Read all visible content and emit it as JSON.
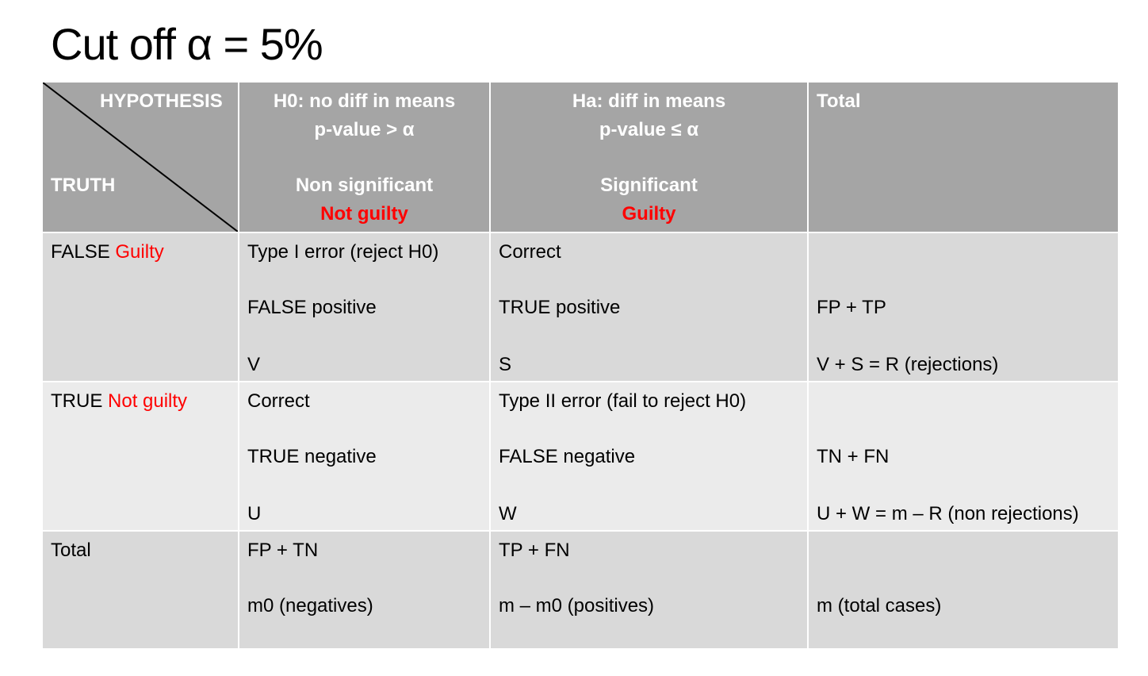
{
  "title": "Cut off α  = 5%",
  "header": {
    "corner_top": "HYPOTHESIS",
    "corner_bottom": "TRUTH",
    "h0_line1": "H0: no diff in means",
    "h0_line2": "p-value > α",
    "h0_line3": "Non significant",
    "h0_line4": "Not guilty",
    "ha_line1": "Ha: diff in means",
    "ha_line2": "p-value ≤ α",
    "ha_line3": "Significant",
    "ha_line4": "Guilty",
    "total": "Total"
  },
  "rows": [
    {
      "label_prefix": "FALSE",
      "label_red": "Guilty",
      "h0": [
        "Type I error (reject H0)",
        "FALSE positive",
        "V"
      ],
      "ha": [
        "Correct",
        "TRUE positive",
        "S"
      ],
      "total": [
        "",
        "FP + TP",
        "V + S = R (rejections)"
      ]
    },
    {
      "label_prefix": "TRUE",
      "label_red": "Not guilty",
      "h0": [
        "Correct",
        "TRUE negative",
        "U"
      ],
      "ha": [
        "Type II error (fail to reject H0)",
        "FALSE negative",
        "W"
      ],
      "total": [
        "",
        "TN + FN",
        "U + W = m – R (non rejections)"
      ]
    },
    {
      "label": "Total",
      "h0": [
        "FP + TN",
        "m0 (negatives)"
      ],
      "ha": [
        "TP + FN",
        "m – m0 (positives)"
      ],
      "total": [
        "",
        "m (total cases)"
      ]
    }
  ],
  "colors": {
    "header_bg": "#a5a5a5",
    "row_dark": "#d9d9d9",
    "row_light": "#ebebeb",
    "accent_red": "#ff0000"
  }
}
